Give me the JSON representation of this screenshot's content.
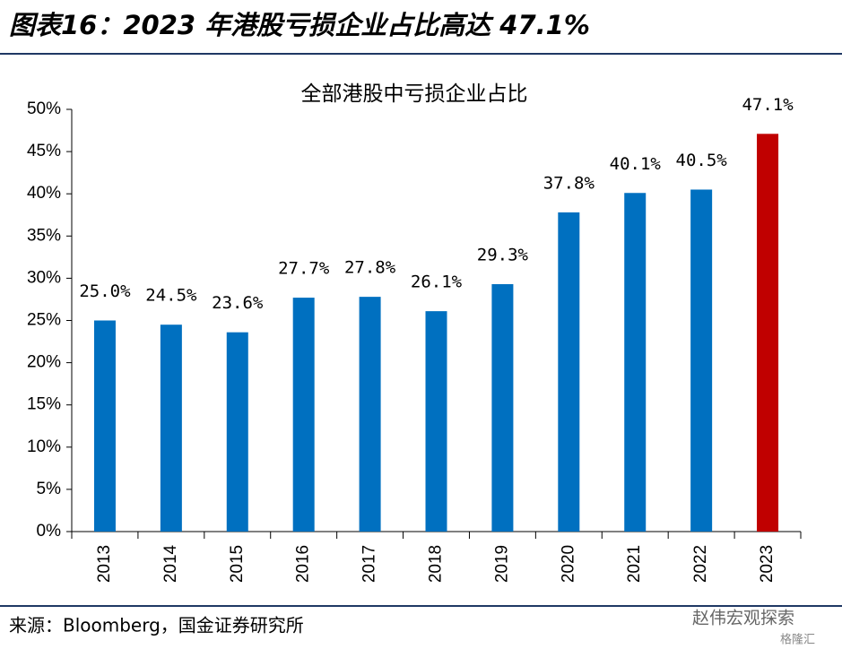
{
  "header": {
    "title": "图表16：2023 年港股亏损企业占比高达 47.1%"
  },
  "chart_data": {
    "type": "bar",
    "title": "全部港股中亏损企业占比",
    "categories": [
      "2013",
      "2014",
      "2015",
      "2016",
      "2017",
      "2018",
      "2019",
      "2020",
      "2021",
      "2022",
      "2023"
    ],
    "values": [
      25.0,
      24.5,
      23.6,
      27.7,
      27.8,
      26.1,
      29.3,
      37.8,
      40.1,
      40.5,
      47.1
    ],
    "value_labels": [
      "25.0%",
      "24.5%",
      "23.6%",
      "27.7%",
      "27.8%",
      "26.1%",
      "29.3%",
      "37.8%",
      "40.1%",
      "40.5%",
      "47.1%"
    ],
    "colors": [
      "#0070c0",
      "#0070c0",
      "#0070c0",
      "#0070c0",
      "#0070c0",
      "#0070c0",
      "#0070c0",
      "#0070c0",
      "#0070c0",
      "#0070c0",
      "#c00000"
    ],
    "ylim": [
      0,
      50
    ],
    "yticks": [
      {
        "value": 0,
        "label": "0%"
      },
      {
        "value": 5,
        "label": "5%"
      },
      {
        "value": 10,
        "label": "10%"
      },
      {
        "value": 15,
        "label": "15%"
      },
      {
        "value": 20,
        "label": "20%"
      },
      {
        "value": 25,
        "label": "25%"
      },
      {
        "value": 30,
        "label": "30%"
      },
      {
        "value": 35,
        "label": "35%"
      },
      {
        "value": 40,
        "label": "40%"
      },
      {
        "value": 45,
        "label": "45%"
      },
      {
        "value": 50,
        "label": "50%"
      }
    ],
    "grid": false
  },
  "footer": {
    "source": "来源：Bloomberg，国金证券研究所"
  },
  "watermark": {
    "account": "赵伟宏观探索",
    "brand": "格隆汇"
  }
}
